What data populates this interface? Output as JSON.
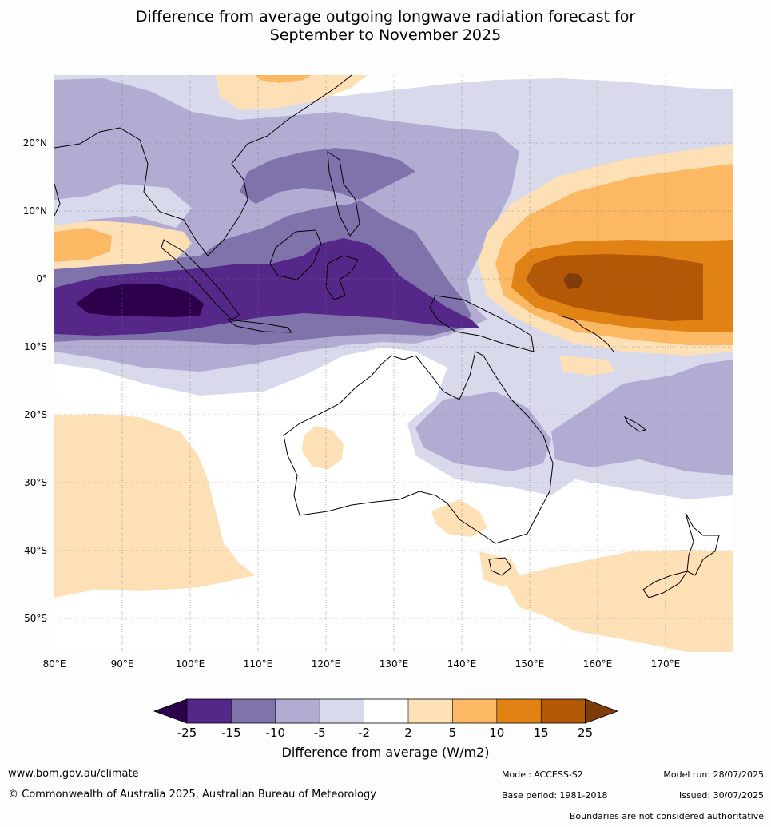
{
  "title_line1": "Difference from average outgoing longwave radiation forecast for",
  "title_line2": "September to November 2025",
  "lat_labels": [
    "20°N",
    "10°N",
    "0°",
    "10°S",
    "20°S",
    "30°S",
    "40°S",
    "50°S"
  ],
  "lon_labels": [
    "80°E",
    "90°E",
    "100°E",
    "110°E",
    "120°E",
    "130°E",
    "140°E",
    "150°E",
    "160°E",
    "170°E"
  ],
  "colorbar": {
    "ticks": [
      "-25",
      "-15",
      "-10",
      "-5",
      "-2",
      "2",
      "5",
      "10",
      "15",
      "25"
    ],
    "colors": [
      "#2d004b",
      "#542788",
      "#8073ac",
      "#b2abd2",
      "#d8daeb",
      "#ffffff",
      "#fee0b6",
      "#fdb863",
      "#e08214",
      "#b35806",
      "#7f3b08"
    ],
    "label": "Difference from average (W/m2)"
  },
  "footer": {
    "url": "www.bom.gov.au/climate",
    "copyright": "© Commonwealth of Australia 2025, Australian Bureau of Meteorology",
    "model": "Model: ACCESS-S2",
    "base_period": "Base period: 1981-2018",
    "model_run": "Model run: 28/07/2025",
    "issued": "Issued: 30/07/2025",
    "disclaimer": "Boundaries are not considered authoritative"
  }
}
